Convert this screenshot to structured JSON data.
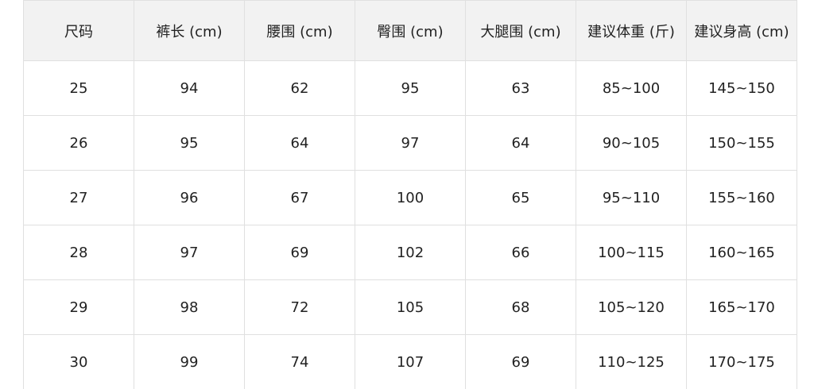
{
  "table": {
    "headers": [
      "尺码",
      "裤长 (cm)",
      "腰围 (cm)",
      "臀围 (cm)",
      "大腿围 (cm)",
      "建议体重 (斤)",
      "建议身高 (cm)"
    ],
    "rows": [
      [
        "25",
        "94",
        "62",
        "95",
        "63",
        "85~100",
        "145~150"
      ],
      [
        "26",
        "95",
        "64",
        "97",
        "64",
        "90~105",
        "150~155"
      ],
      [
        "27",
        "96",
        "67",
        "100",
        "65",
        "95~110",
        "155~160"
      ],
      [
        "28",
        "97",
        "69",
        "102",
        "66",
        "100~115",
        "160~165"
      ],
      [
        "29",
        "98",
        "72",
        "105",
        "68",
        "105~120",
        "165~170"
      ],
      [
        "30",
        "99",
        "74",
        "107",
        "69",
        "110~125",
        "170~175"
      ]
    ]
  }
}
